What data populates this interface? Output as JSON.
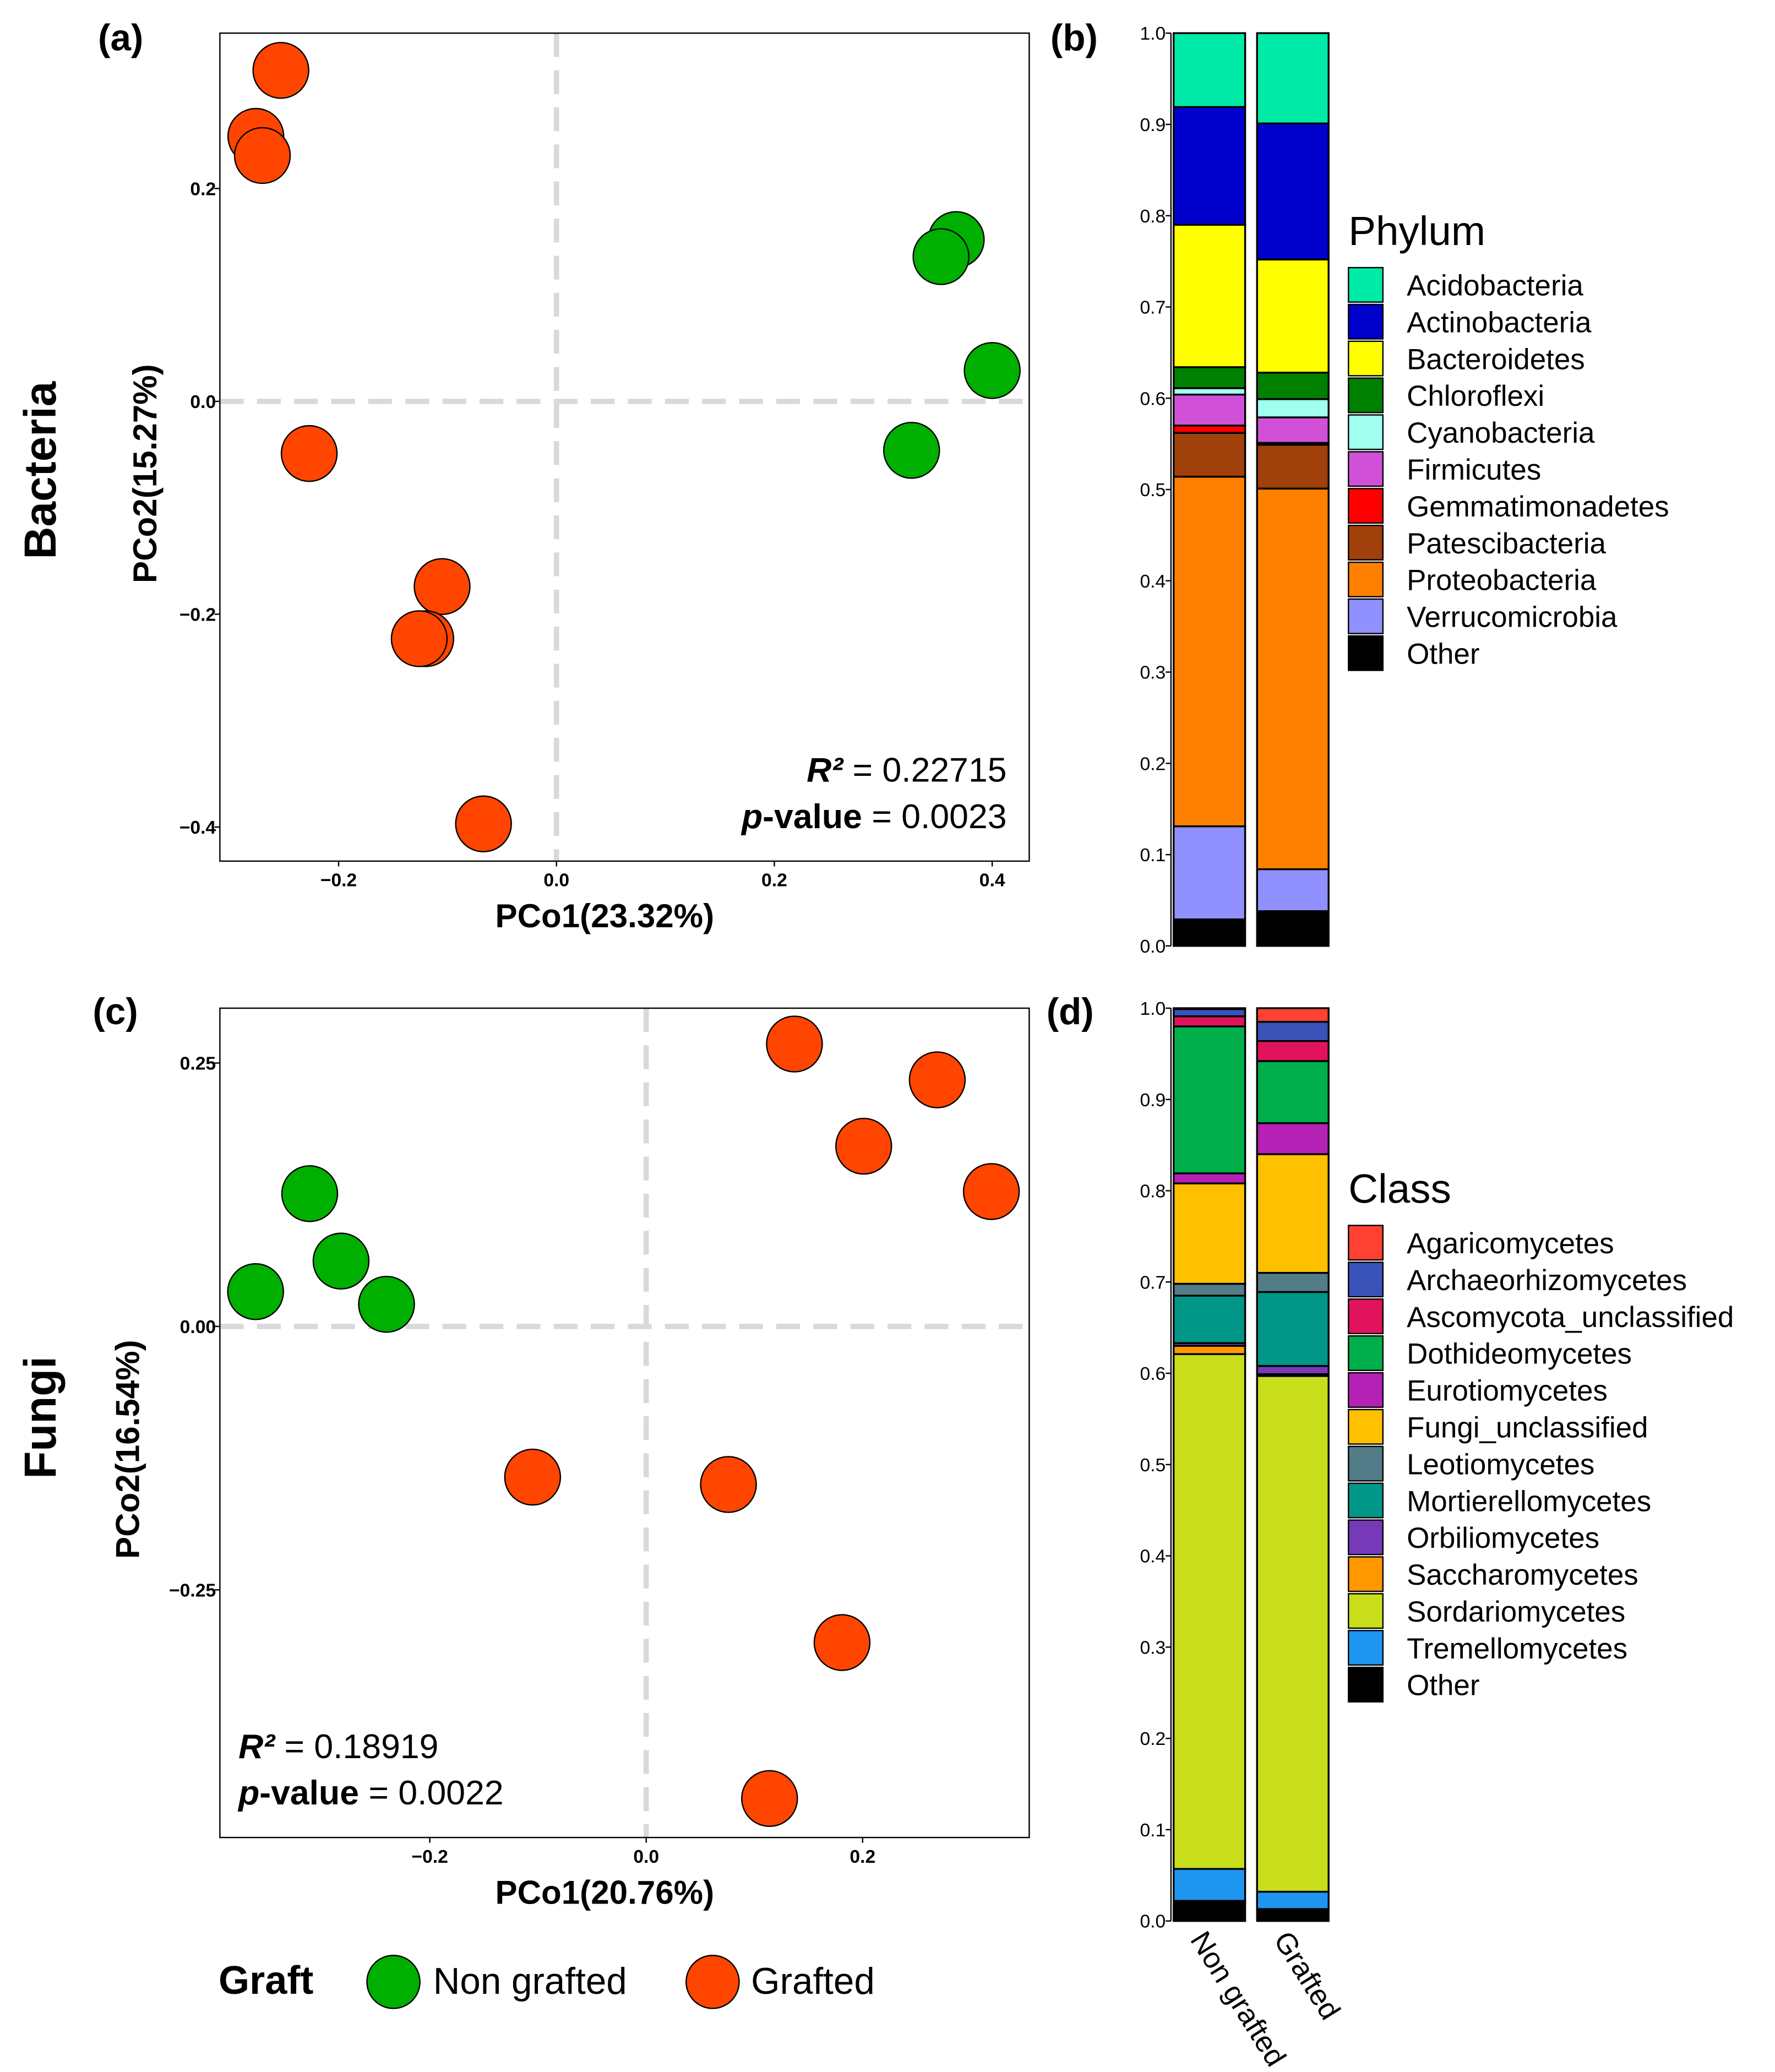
{
  "figure": {
    "row_labels": [
      "Bacteria",
      "Fungi"
    ],
    "graft_legend": {
      "title": "Graft",
      "items": [
        {
          "label": "Non grafted",
          "color": "#00B000"
        },
        {
          "label": "Grafted",
          "color": "#FF4500"
        }
      ]
    }
  },
  "chart_data": [
    {
      "panel": "(a)",
      "type": "scatter",
      "xlabel": "PCo1(23.32%)",
      "ylabel": "PCo2(15.27%)",
      "xlim": [
        -0.309,
        0.434
      ],
      "ylim": [
        -0.432,
        0.346
      ],
      "xticks": [
        -0.2,
        0.0,
        0.2,
        0.4
      ],
      "xtick_labels": [
        "−0.2",
        "0.0",
        "0.2",
        "0.4"
      ],
      "yticks": [
        0.2,
        0.0,
        -0.2,
        -0.4
      ],
      "ytick_labels": [
        "0.2",
        "0.0",
        "−0.2",
        "−0.4"
      ],
      "reference_lines": {
        "x": 0,
        "y": 0
      },
      "stats": {
        "r2_label": "R²",
        "r2_value": " = 0.22715",
        "p_label": "p",
        "p_suffix": "-value",
        "p_value": " = 0.0023",
        "placement": "bottom-right"
      },
      "series": [
        {
          "name": "Non grafted",
          "color": "#00B000",
          "points": [
            [
              0.367,
              0.152
            ],
            [
              0.353,
              0.136
            ],
            [
              0.4,
              0.029
            ],
            [
              0.326,
              -0.046
            ]
          ]
        },
        {
          "name": "Grafted",
          "color": "#FF4500",
          "points": [
            [
              -0.253,
              0.311
            ],
            [
              -0.276,
              0.249
            ],
            [
              -0.27,
              0.231
            ],
            [
              -0.227,
              -0.049
            ],
            [
              -0.105,
              -0.174
            ],
            [
              -0.12,
              -0.223
            ],
            [
              -0.126,
              -0.223
            ],
            [
              -0.067,
              -0.397
            ]
          ]
        }
      ]
    },
    {
      "panel": "(b)",
      "type": "bar",
      "stacked": true,
      "categories": [
        "Non grafted",
        "Grafted"
      ],
      "ylim": [
        0,
        1
      ],
      "yticks": [
        "0.0",
        "0.1",
        "0.2",
        "0.3",
        "0.4",
        "0.5",
        "0.6",
        "0.7",
        "0.8",
        "0.9",
        "1.0"
      ],
      "legend_title": "Phylum",
      "legend_placement": "right",
      "series": [
        {
          "name": "Acidobacteria",
          "color": "#00EBA8",
          "values": [
            0.081,
            0.099
          ]
        },
        {
          "name": "Actinobacteria",
          "color": "#0000CC",
          "values": [
            0.129,
            0.149
          ]
        },
        {
          "name": "Bacteroidetes",
          "color": "#FFFF00",
          "values": [
            0.156,
            0.124
          ]
        },
        {
          "name": "Chloroflexi",
          "color": "#008000",
          "values": [
            0.023,
            0.029
          ]
        },
        {
          "name": "Cyanobacteria",
          "color": "#A0FFEE",
          "values": [
            0.007,
            0.02
          ]
        },
        {
          "name": "Firmicutes",
          "color": "#D050D8",
          "values": [
            0.034,
            0.028
          ]
        },
        {
          "name": "Gemmatimonadetes",
          "color": "#FF0000",
          "values": [
            0.008,
            0.002
          ]
        },
        {
          "name": "Patescibacteria",
          "color": "#A0400A",
          "values": [
            0.048,
            0.048
          ]
        },
        {
          "name": "Proteobacteria",
          "color": "#FF8000",
          "values": [
            0.383,
            0.417
          ]
        },
        {
          "name": "Verrucomicrobia",
          "color": "#9090FF",
          "values": [
            0.102,
            0.046
          ]
        },
        {
          "name": "Other",
          "color": "#000000",
          "values": [
            0.029,
            0.038
          ]
        }
      ]
    },
    {
      "panel": "(c)",
      "type": "scatter",
      "xlabel": "PCo1(20.76%)",
      "ylabel": "PCo2(16.54%)",
      "xlim": [
        -0.394,
        0.354
      ],
      "ylim": [
        -0.485,
        0.302
      ],
      "xticks": [
        -0.2,
        0.0,
        0.2
      ],
      "xtick_labels": [
        "−0.2",
        "0.0",
        "0.2"
      ],
      "yticks": [
        0.25,
        0.0,
        -0.25
      ],
      "ytick_labels": [
        "0.25",
        "0.00",
        "−0.25"
      ],
      "reference_lines": {
        "x": 0,
        "y": 0
      },
      "stats": {
        "r2_label": "R²",
        "r2_value": " = 0.18919",
        "p_label": "p",
        "p_suffix": "-value",
        "p_value": " = 0.0022",
        "placement": "bottom-left"
      },
      "series": [
        {
          "name": "Non grafted",
          "color": "#00B000",
          "points": [
            [
              -0.311,
              0.126
            ],
            [
              -0.282,
              0.062
            ],
            [
              -0.361,
              0.033
            ],
            [
              -0.24,
              0.021
            ]
          ]
        },
        {
          "name": "Grafted",
          "color": "#FF4500",
          "points": [
            [
              0.137,
              0.268
            ],
            [
              0.269,
              0.234
            ],
            [
              0.201,
              0.171
            ],
            [
              0.319,
              0.128
            ],
            [
              -0.105,
              -0.143
            ],
            [
              0.076,
              -0.15
            ],
            [
              0.181,
              -0.3
            ],
            [
              0.114,
              -0.448
            ]
          ]
        }
      ]
    },
    {
      "panel": "(d)",
      "type": "bar",
      "stacked": true,
      "categories": [
        "Non grafted",
        "Grafted"
      ],
      "ylim": [
        0,
        1
      ],
      "yticks": [
        "0.0",
        "0.1",
        "0.2",
        "0.3",
        "0.4",
        "0.5",
        "0.6",
        "0.7",
        "0.8",
        "0.9",
        "1.0"
      ],
      "legend_title": "Class",
      "legend_placement": "right",
      "series": [
        {
          "name": "Agaricomycetes",
          "color": "#FF4133",
          "values": [
            0.001,
            0.015
          ]
        },
        {
          "name": "Archaeorhizomycetes",
          "color": "#3A53B8",
          "values": [
            0.008,
            0.021
          ]
        },
        {
          "name": "Ascomycota_unclassified",
          "color": "#E0135C",
          "values": [
            0.011,
            0.022
          ]
        },
        {
          "name": "Dothideomycetes",
          "color": "#00AF4B",
          "values": [
            0.161,
            0.068
          ]
        },
        {
          "name": "Eurotiomycetes",
          "color": "#B521B4",
          "values": [
            0.011,
            0.034
          ]
        },
        {
          "name": "Fungi_unclassified",
          "color": "#FFC000",
          "values": [
            0.11,
            0.13
          ]
        },
        {
          "name": "Leotiomycetes",
          "color": "#527C87",
          "values": [
            0.013,
            0.021
          ]
        },
        {
          "name": "Mortierellomycetes",
          "color": "#009688",
          "values": [
            0.052,
            0.081
          ]
        },
        {
          "name": "Orbiliomycetes",
          "color": "#763AB8",
          "values": [
            0.003,
            0.009
          ]
        },
        {
          "name": "Saccharomycetes",
          "color": "#FF9800",
          "values": [
            0.009,
            0.002
          ]
        },
        {
          "name": "Sordariomycetes",
          "color": "#C8DE1A",
          "values": [
            0.564,
            0.565
          ]
        },
        {
          "name": "Tremellomycetes",
          "color": "#1E96F0",
          "values": [
            0.035,
            0.019
          ]
        },
        {
          "name": "Other",
          "color": "#000000",
          "values": [
            0.022,
            0.013
          ]
        }
      ]
    }
  ]
}
